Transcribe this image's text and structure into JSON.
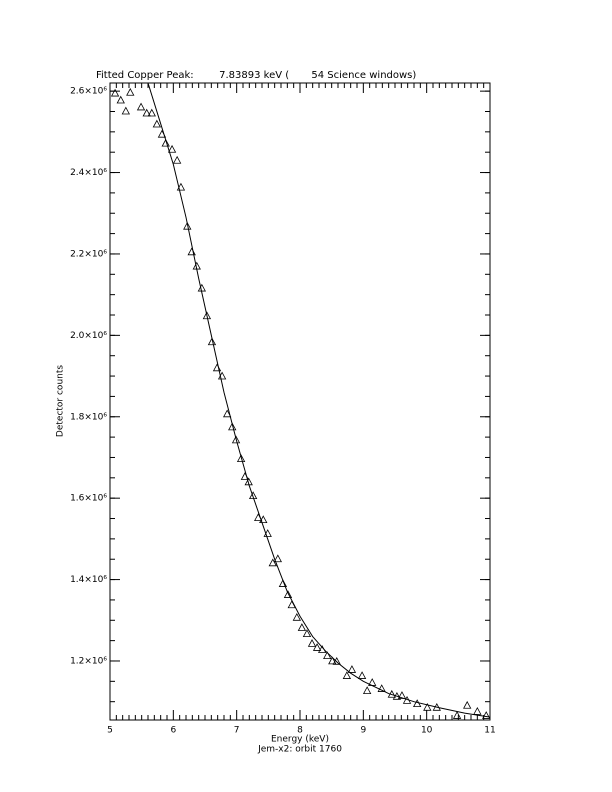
{
  "chart_data": {
    "type": "scatter",
    "title": "Fitted Copper Peak:        7.83893 keV (       54 Science windows)",
    "xlabel": "Energy (keV)",
    "subtitle": "Jem-x2: orbit 1760",
    "ylabel": "Detector counts",
    "xlim": [
      5,
      11
    ],
    "xticks": [
      5,
      6,
      7,
      8,
      9,
      10,
      11
    ],
    "ylim": [
      1055000,
      2620000
    ],
    "yticks": [
      {
        "value": 1200000,
        "label": "1.2×10⁶"
      },
      {
        "value": 1400000,
        "label": "1.4×10⁶"
      },
      {
        "value": 1600000,
        "label": "1.6×10⁶"
      },
      {
        "value": 1800000,
        "label": "1.8×10⁶"
      },
      {
        "value": 2000000,
        "label": "2.0×10⁶"
      },
      {
        "value": 2200000,
        "label": "2.2×10⁶"
      },
      {
        "value": 2400000,
        "label": "2.4×10⁶"
      },
      {
        "value": 2600000,
        "label": "2.6×10⁶"
      }
    ],
    "color": "#000000",
    "x": [
      5.08,
      5.17,
      5.25,
      5.32,
      5.49,
      5.58,
      5.66,
      5.74,
      5.82,
      5.88,
      5.98,
      6.06,
      6.12,
      6.22,
      6.29,
      6.37,
      6.45,
      6.53,
      6.61,
      6.69,
      6.77,
      6.85,
      6.93,
      6.99,
      7.07,
      7.13,
      7.19,
      7.26,
      7.34,
      7.42,
      7.49,
      7.57,
      7.65,
      7.73,
      7.81,
      7.87,
      7.95,
      8.03,
      8.11,
      8.19,
      8.27,
      8.35,
      8.43,
      8.51,
      8.58,
      8.74,
      8.82,
      8.98,
      9.06,
      9.14,
      9.29,
      9.45,
      9.53,
      9.61,
      9.69,
      9.85,
      10.01,
      10.16,
      10.48,
      10.64,
      10.8,
      10.94
    ],
    "values": [
      2594000,
      2577000,
      2550000,
      2596000,
      2560000,
      2545000,
      2545000,
      2518000,
      2493000,
      2471000,
      2456000,
      2429000,
      2363000,
      2267000,
      2204000,
      2169000,
      2115000,
      2047000,
      1983000,
      1919000,
      1899000,
      1806000,
      1774000,
      1742000,
      1696000,
      1652000,
      1639000,
      1605000,
      1551000,
      1546000,
      1512000,
      1440000,
      1450000,
      1389000,
      1362000,
      1337000,
      1306000,
      1281000,
      1266000,
      1242000,
      1232000,
      1227000,
      1212000,
      1199000,
      1198000,
      1163000,
      1178000,
      1163000,
      1126000,
      1146000,
      1131000,
      1117000,
      1112000,
      1114000,
      1102000,
      1094000,
      1085000,
      1085000,
      1065000,
      1090000,
      1075000,
      1065000
    ],
    "fit": {
      "x": [
        5.6,
        5.8,
        6.0,
        6.2,
        6.4,
        6.6,
        6.8,
        7.0,
        7.2,
        7.4,
        7.6,
        7.8,
        8.0,
        8.2,
        8.4,
        8.6,
        8.8,
        9.0,
        9.4,
        9.8,
        10.2,
        10.6,
        11.0
      ],
      "values": [
        2620000,
        2520000,
        2420000,
        2290000,
        2140000,
        2000000,
        1860000,
        1740000,
        1630000,
        1540000,
        1450000,
        1370000,
        1310000,
        1260000,
        1225000,
        1195000,
        1170000,
        1150000,
        1120000,
        1100000,
        1085000,
        1072000,
        1062000
      ]
    }
  }
}
